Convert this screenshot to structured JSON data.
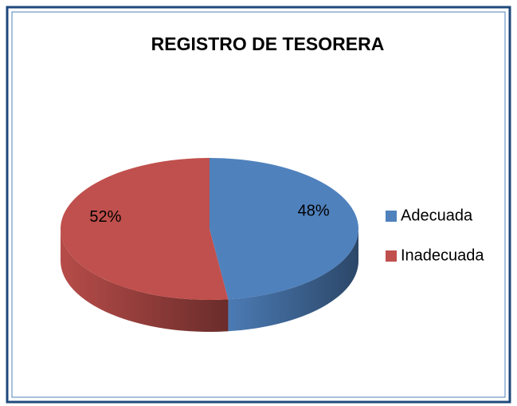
{
  "chart_data": {
    "type": "pie",
    "title": "REGISTRO DE TESORERA",
    "categories": [
      "Adecuada",
      "Inadecuada"
    ],
    "values": [
      48,
      52
    ],
    "value_labels": [
      "48%",
      "52%"
    ],
    "colors": [
      "#4f81bd",
      "#c0504d"
    ],
    "legend": "right"
  }
}
